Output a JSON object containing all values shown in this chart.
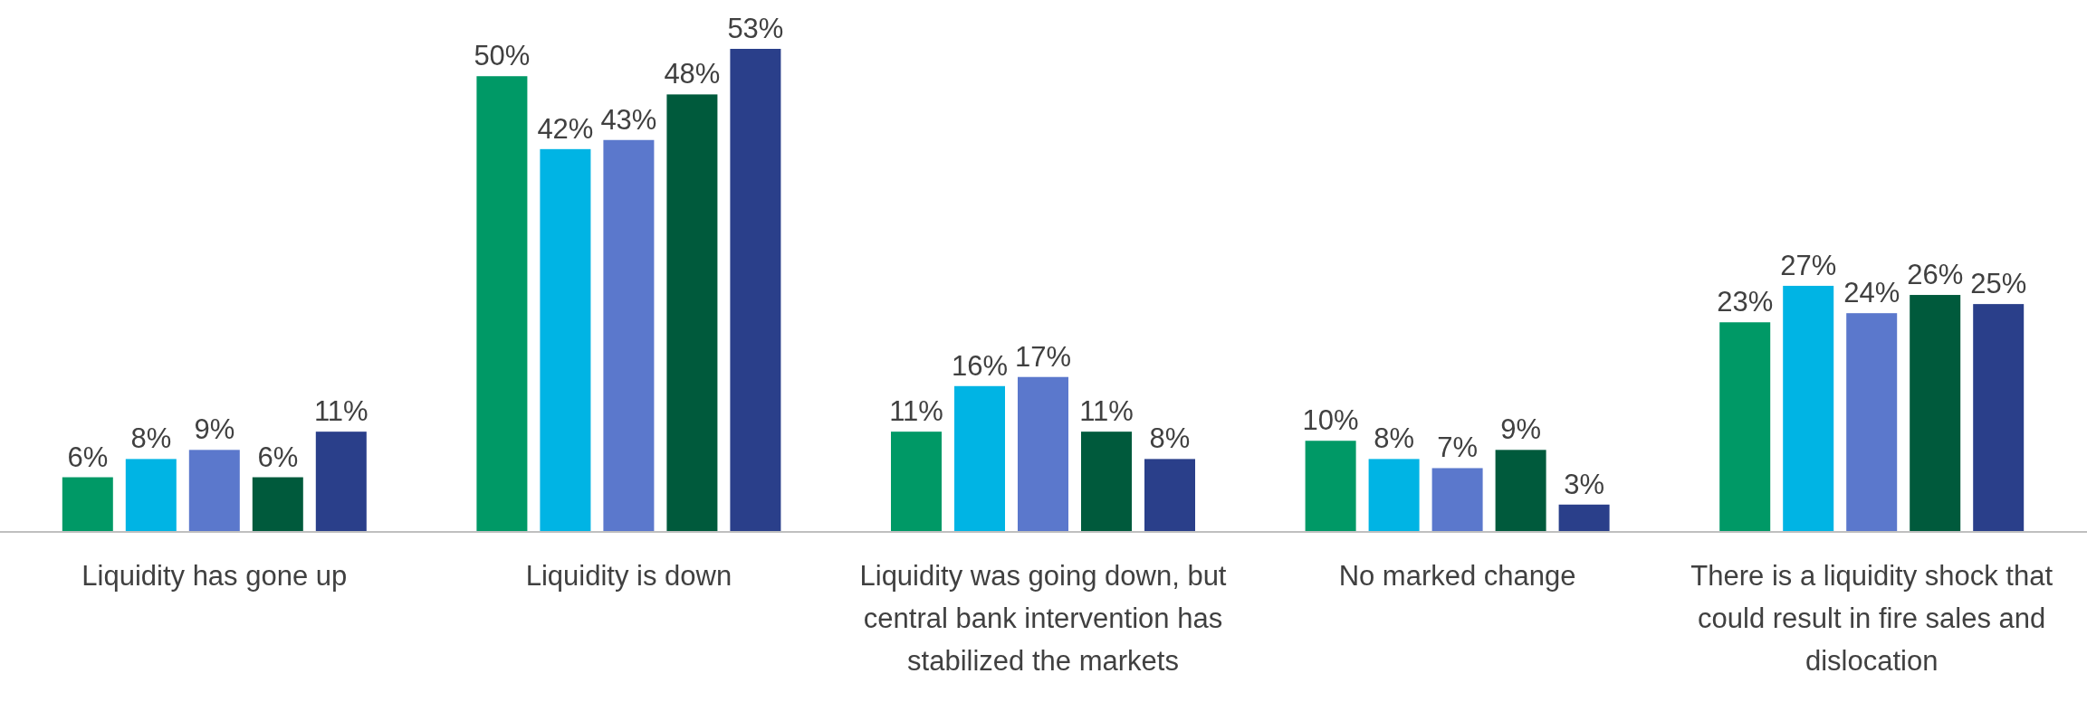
{
  "chart_data": {
    "type": "bar",
    "categories": [
      "Liquidity has gone up",
      "Liquidity is down",
      "Liquidity was going down, but central bank intervention has stabilized the markets",
      "No marked change",
      "There is a liquidity shock that could result in fire sales and dislocation"
    ],
    "series": [
      {
        "color": "#009966",
        "values": [
          6,
          50,
          11,
          10,
          23
        ],
        "value_labels": [
          "6%",
          "50%",
          "11%",
          "10%",
          "23%"
        ]
      },
      {
        "color": "#00b4e4",
        "values": [
          8,
          42,
          16,
          8,
          27
        ],
        "value_labels": [
          "8%",
          "42%",
          "16%",
          "8%",
          "27%"
        ]
      },
      {
        "color": "#5b78cc",
        "values": [
          9,
          43,
          17,
          7,
          24
        ],
        "value_labels": [
          "9%",
          "43%",
          "17%",
          "7%",
          "24%"
        ]
      },
      {
        "color": "#005a3c",
        "values": [
          6,
          48,
          11,
          9,
          26
        ],
        "value_labels": [
          "6%",
          "48%",
          "11%",
          "9%",
          "26%"
        ]
      },
      {
        "color": "#2a3f8a",
        "values": [
          11,
          53,
          8,
          3,
          25
        ],
        "value_labels": [
          "11%",
          "53%",
          "8%",
          "3%",
          "25%"
        ]
      }
    ]
  }
}
